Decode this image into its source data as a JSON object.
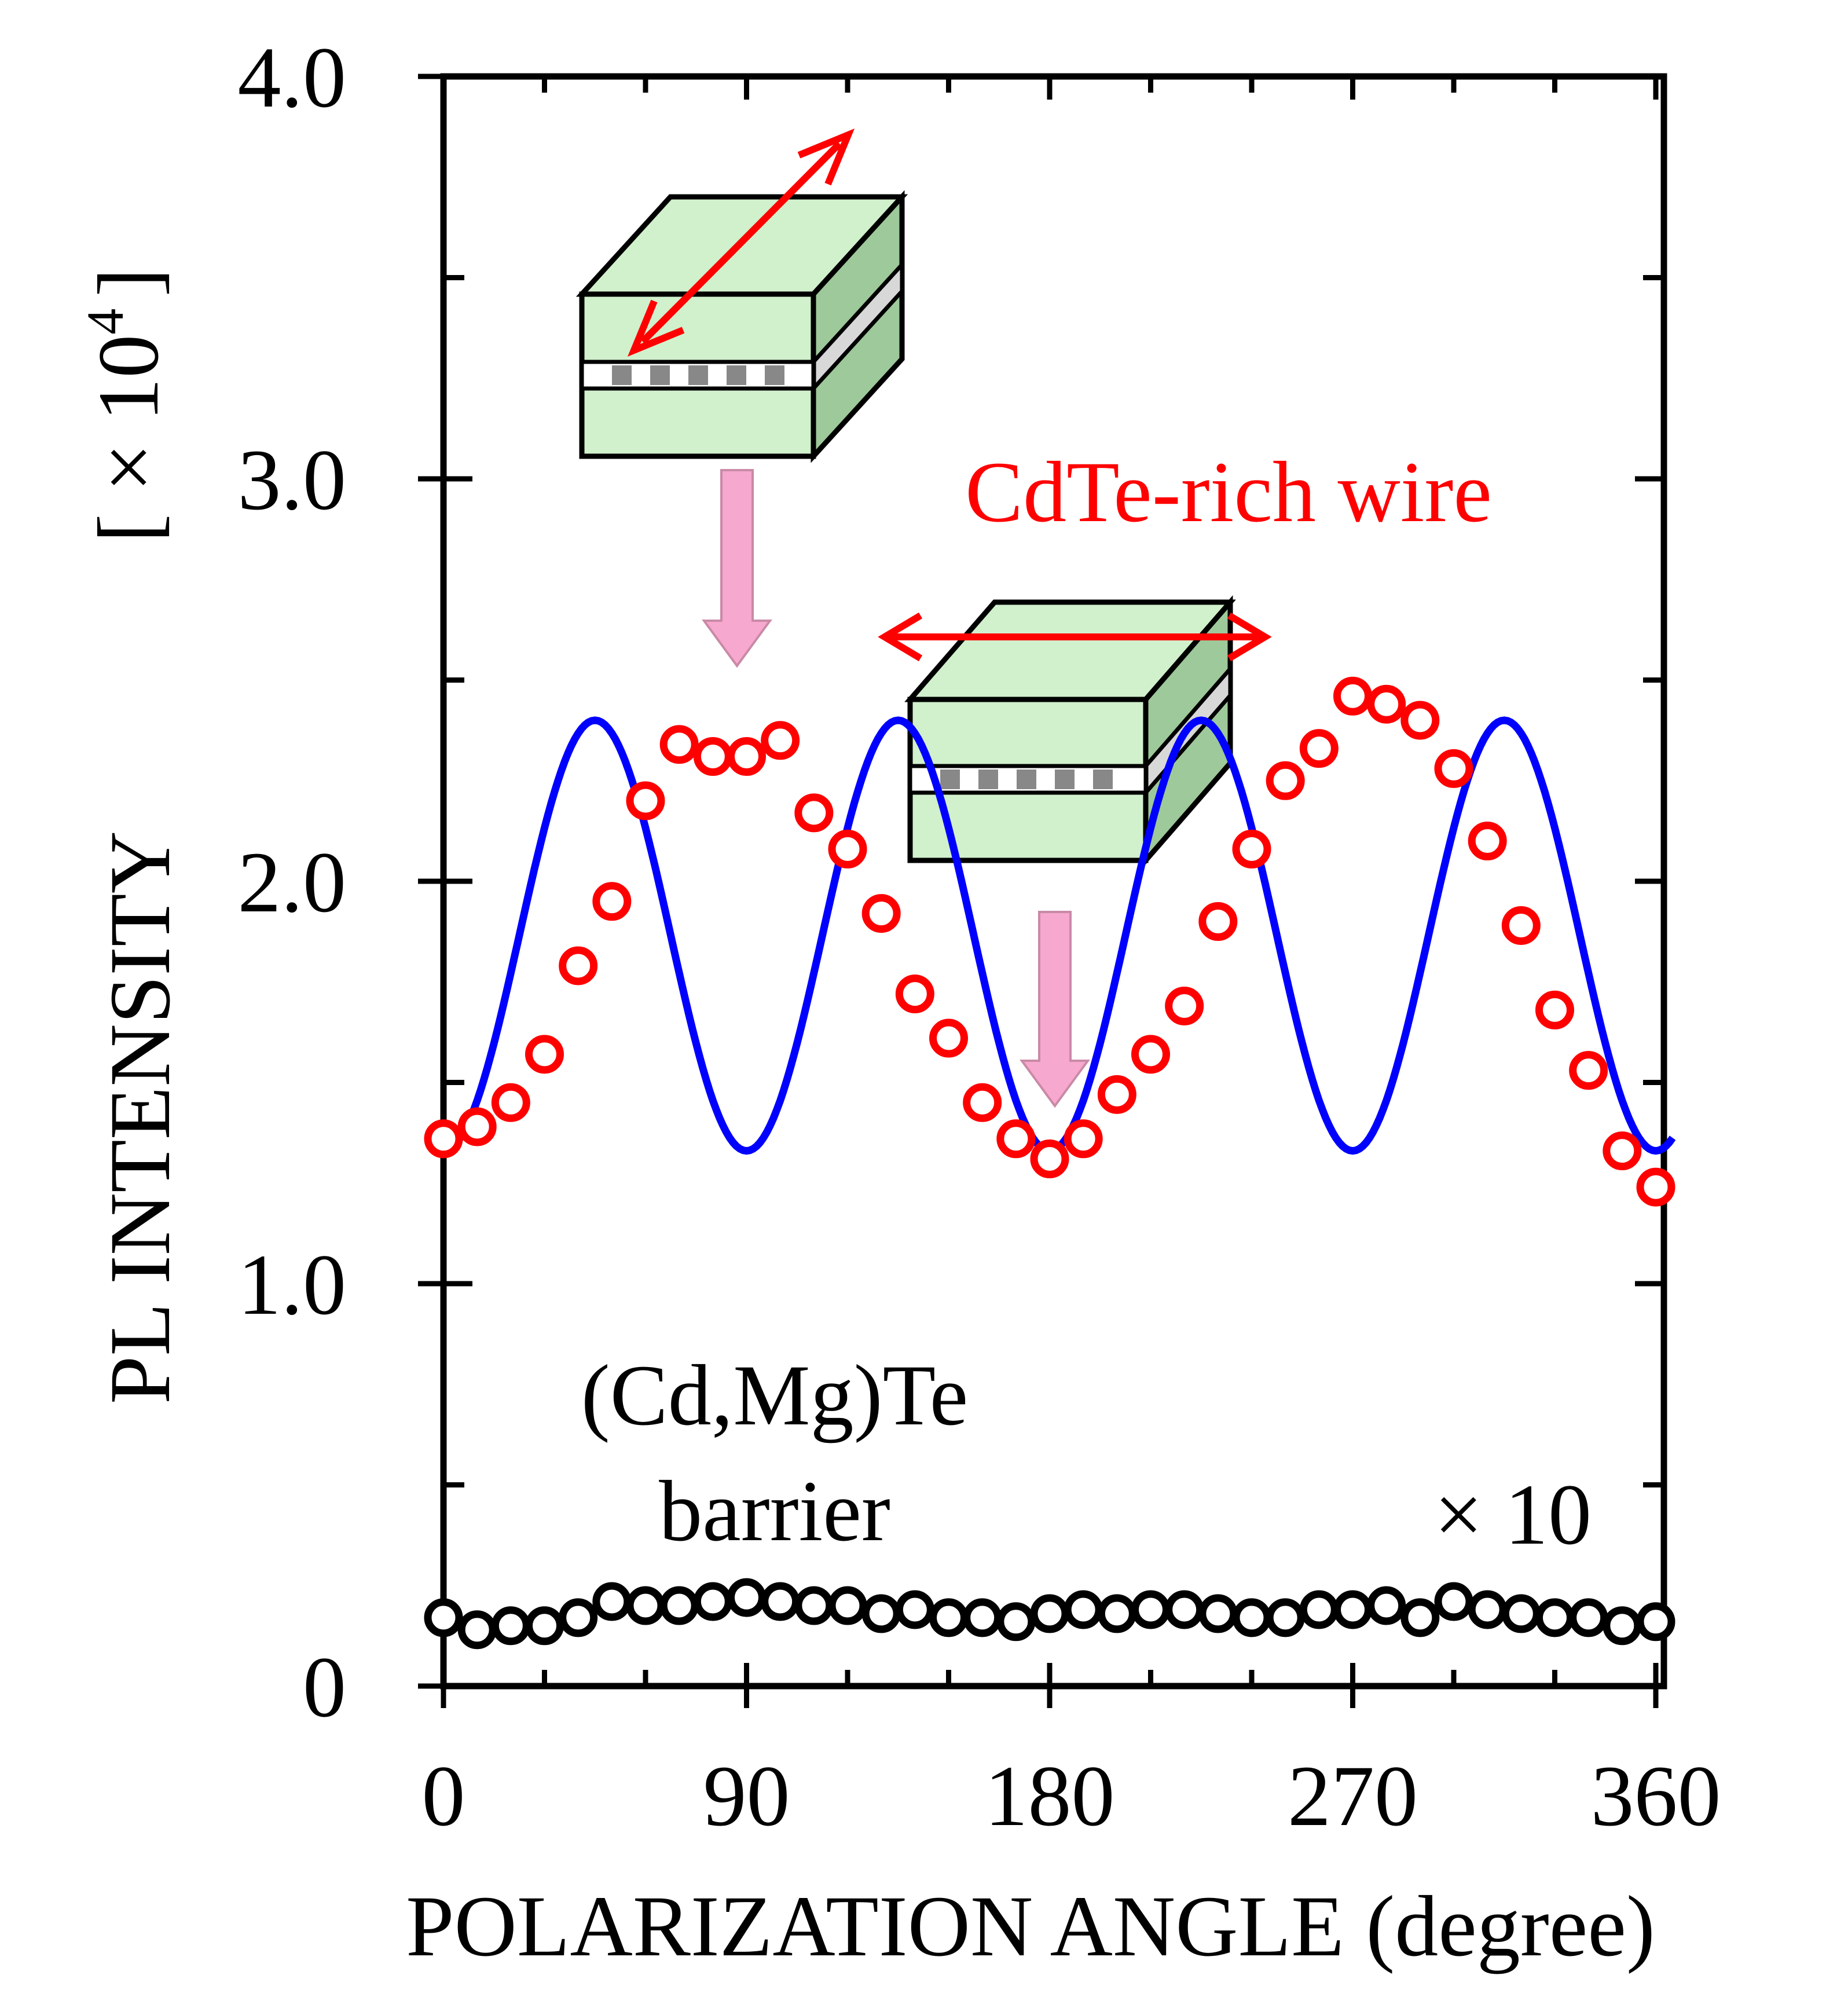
{
  "chart_data": {
    "type": "scatter",
    "x_label": "POLARIZATION ANGLE (degree)",
    "y_label": "PL INTENSITY",
    "y_unit": {
      "base": "[ × 10",
      "exponent": "4",
      "close": "]"
    },
    "x_range": [
      0,
      365
    ],
    "y_range": [
      0,
      4.0
    ],
    "x_ticks": [
      0,
      90,
      180,
      270,
      360
    ],
    "x_tick_labels": [
      "0",
      "90",
      "180",
      "270",
      "360"
    ],
    "y_ticks": [
      0,
      1.0,
      2.0,
      3.0,
      4.0
    ],
    "y_tick_labels": [
      "0",
      "1.0",
      "2.0",
      "3.0",
      "4.0"
    ],
    "annotations": {
      "wire": "CdTe-rich wire",
      "barrier_line1": "(Cd,Mg)Te",
      "barrier_line2": "barrier",
      "scale_factor": "× 10"
    },
    "series": [
      {
        "marker": "open-circle",
        "color": "#ff0000",
        "x": [
          0,
          10,
          20,
          30,
          40,
          50,
          60,
          70,
          80,
          90,
          100,
          110,
          120,
          130,
          140,
          150,
          160,
          170,
          180,
          190,
          200,
          210,
          220,
          230,
          240,
          250,
          260,
          270,
          280,
          290,
          300,
          310,
          320,
          330,
          340,
          350,
          360
        ],
        "y": [
          1.36,
          1.39,
          1.45,
          1.57,
          1.79,
          1.95,
          2.2,
          2.34,
          2.31,
          2.31,
          2.35,
          2.17,
          2.08,
          1.92,
          1.72,
          1.61,
          1.45,
          1.36,
          1.31,
          1.36,
          1.47,
          1.57,
          1.69,
          1.9,
          2.08,
          2.25,
          2.33,
          2.46,
          2.44,
          2.4,
          2.28,
          2.1,
          1.89,
          1.68,
          1.53,
          1.33,
          1.24
        ]
      },
      {
        "type": "line",
        "color": "#0000ff",
        "description_of_fit": "a + b·sin²(2θ)",
        "x_start": 0,
        "x_end": 365,
        "params": {
          "offset": 1.33,
          "amplitude": 1.07
        }
      },
      {
        "marker": "open-circle",
        "color": "#000000",
        "x": [
          0,
          10,
          20,
          30,
          40,
          50,
          60,
          70,
          80,
          90,
          100,
          110,
          120,
          130,
          140,
          150,
          160,
          170,
          180,
          190,
          200,
          210,
          220,
          230,
          240,
          250,
          260,
          270,
          280,
          290,
          300,
          310,
          320,
          330,
          340,
          350,
          360
        ],
        "y": [
          0.17,
          0.14,
          0.15,
          0.15,
          0.17,
          0.21,
          0.2,
          0.2,
          0.21,
          0.22,
          0.21,
          0.2,
          0.2,
          0.18,
          0.19,
          0.17,
          0.17,
          0.16,
          0.18,
          0.19,
          0.18,
          0.19,
          0.19,
          0.18,
          0.17,
          0.17,
          0.19,
          0.19,
          0.2,
          0.17,
          0.21,
          0.19,
          0.18,
          0.17,
          0.17,
          0.15,
          0.16
        ]
      }
    ],
    "grid": false,
    "legend": "none"
  }
}
